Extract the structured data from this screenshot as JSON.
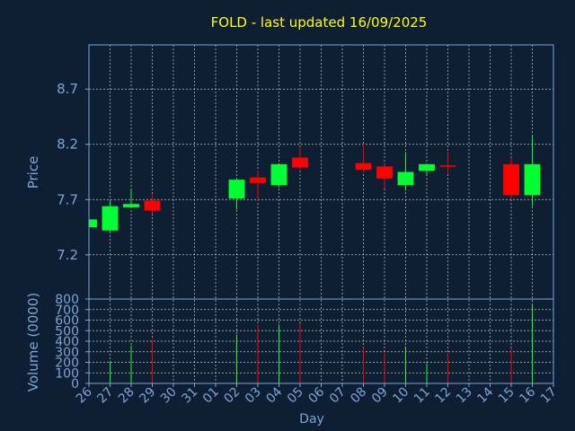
{
  "colors": {
    "background": "#0f1f33",
    "title": "#ffff00",
    "text": "#7aa6d6",
    "axis": "#7aa6d6",
    "grid": "#c8c8c8",
    "up": "#00ff33",
    "down": "#ff0000"
  },
  "chart_data": [
    {
      "type": "candlestick",
      "title": "FOLD - last updated 16/09/2025",
      "ylabel": "Price",
      "ylim": [
        6.8,
        9.1
      ],
      "yticks": [
        "7.2",
        "7.7",
        "8.2",
        "8.7"
      ],
      "ytick_values": [
        7.2,
        7.7,
        8.2,
        8.7
      ],
      "grid": true,
      "candles": [
        {
          "x": 0,
          "date": "26",
          "open": 7.45,
          "close": 7.52,
          "high": 7.52,
          "low": 7.45
        },
        {
          "x": 1,
          "date": "27",
          "open": 7.42,
          "close": 7.64,
          "high": 7.69,
          "low": 7.41
        },
        {
          "x": 2,
          "date": "28",
          "open": 7.63,
          "close": 7.66,
          "high": 7.8,
          "low": 7.63
        },
        {
          "x": 3,
          "date": "29",
          "open": 7.69,
          "close": 7.6,
          "high": 7.75,
          "low": 7.57
        },
        {
          "x": 7,
          "date": "02",
          "open": 7.71,
          "close": 7.88,
          "high": 7.89,
          "low": 7.61
        },
        {
          "x": 8,
          "date": "03",
          "open": 7.9,
          "close": 7.85,
          "high": 7.96,
          "low": 7.69
        },
        {
          "x": 9,
          "date": "04",
          "open": 7.83,
          "close": 8.02,
          "high": 8.03,
          "low": 7.81
        },
        {
          "x": 10,
          "date": "05",
          "open": 8.08,
          "close": 7.99,
          "high": 8.17,
          "low": 7.97
        },
        {
          "x": 13,
          "date": "08",
          "open": 8.03,
          "close": 7.97,
          "high": 8.2,
          "low": 7.94
        },
        {
          "x": 14,
          "date": "09",
          "open": 8.0,
          "close": 7.89,
          "high": 8.02,
          "low": 7.8
        },
        {
          "x": 15,
          "date": "10",
          "open": 7.83,
          "close": 7.95,
          "high": 8.13,
          "low": 7.78
        },
        {
          "x": 16,
          "date": "11",
          "open": 7.96,
          "close": 8.02,
          "high": 8.02,
          "low": 7.93
        },
        {
          "x": 17,
          "date": "12",
          "open": 8.01,
          "close": 8.0,
          "high": 8.12,
          "low": 7.93
        },
        {
          "x": 20,
          "date": "15",
          "open": 8.02,
          "close": 7.74,
          "high": 8.08,
          "low": 7.71
        },
        {
          "x": 21,
          "date": "16",
          "open": 7.74,
          "close": 8.02,
          "high": 8.28,
          "low": 7.64
        }
      ]
    },
    {
      "type": "bar",
      "ylabel": "Volume (0000)",
      "xlabel": "Day",
      "ylim": [
        0,
        800
      ],
      "yticks": [
        "0",
        "100",
        "200",
        "300",
        "400",
        "500",
        "600",
        "700",
        "800"
      ],
      "ytick_values": [
        0,
        100,
        200,
        300,
        400,
        500,
        600,
        700,
        800
      ],
      "categories": [
        "26",
        "27",
        "28",
        "29",
        "30",
        "31",
        "01",
        "02",
        "03",
        "04",
        "05",
        "06",
        "07",
        "08",
        "09",
        "10",
        "11",
        "12",
        "13",
        "14",
        "15",
        "16",
        "17"
      ],
      "volumes": [
        {
          "x": 1,
          "value": 200,
          "dir": "up"
        },
        {
          "x": 2,
          "value": 360,
          "dir": "up"
        },
        {
          "x": 3,
          "value": 420,
          "dir": "down"
        },
        {
          "x": 7,
          "value": 460,
          "dir": "up"
        },
        {
          "x": 8,
          "value": 550,
          "dir": "down"
        },
        {
          "x": 9,
          "value": 560,
          "dir": "up"
        },
        {
          "x": 10,
          "value": 570,
          "dir": "down"
        },
        {
          "x": 13,
          "value": 340,
          "dir": "down"
        },
        {
          "x": 14,
          "value": 290,
          "dir": "down"
        },
        {
          "x": 15,
          "value": 350,
          "dir": "up"
        },
        {
          "x": 16,
          "value": 190,
          "dir": "up"
        },
        {
          "x": 17,
          "value": 290,
          "dir": "down"
        },
        {
          "x": 20,
          "value": 330,
          "dir": "down"
        },
        {
          "x": 21,
          "value": 740,
          "dir": "up"
        }
      ]
    }
  ]
}
